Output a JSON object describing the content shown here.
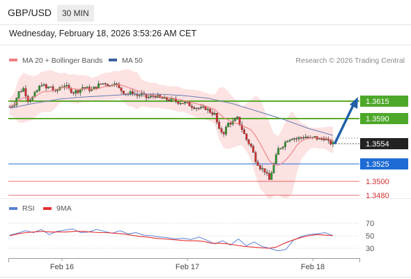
{
  "header": {
    "pair": "GBP/USD",
    "timeframe": "30 MIN",
    "datetime": "Wednesday, February 18, 2026 3:53:26 AM CET"
  },
  "legend": {
    "ma20_label": "MA 20 + Bollinger Bands",
    "ma50_label": "MA 50",
    "ma20_color": "#f08080",
    "ma50_color": "#3a5fa0",
    "copyright": "Research © 2026 Trading Central"
  },
  "rsi_legend": {
    "rsi_label": "RSI",
    "ma_label": "9MA",
    "rsi_color": "#5b7fd6",
    "ma_color": "#e53030"
  },
  "chart_data": {
    "type": "candlestick",
    "x_ticks": [
      "Feb 16",
      "Feb 17",
      "Feb 18"
    ],
    "price_range": [
      1.3466,
      1.3659
    ],
    "current_price": 1.3554,
    "levels": [
      {
        "value": 1.3615,
        "label": "1.3615",
        "kind": "resistance",
        "color": "#5aaa2a"
      },
      {
        "value": 1.359,
        "label": "1.3590",
        "kind": "resistance",
        "color": "#5aaa2a"
      },
      {
        "value": 1.3554,
        "label": "1.3554",
        "kind": "current",
        "color": "#333333"
      },
      {
        "value": 1.3525,
        "label": "1.3525",
        "kind": "pivot",
        "color": "#1e6bd6"
      },
      {
        "value": 1.35,
        "label": "1.3500",
        "kind": "support",
        "color": "#e53030"
      },
      {
        "value": 1.348,
        "label": "1.3480",
        "kind": "support",
        "color": "#e53030"
      }
    ],
    "close_path": [
      1.3607,
      1.3612,
      1.3628,
      1.3633,
      1.3617,
      1.362,
      1.363,
      1.364,
      1.3633,
      1.3636,
      1.3627,
      1.3635,
      1.3638,
      1.3632,
      1.3628,
      1.363,
      1.3635,
      1.3633,
      1.3631,
      1.3636,
      1.364,
      1.3641,
      1.3637,
      1.3643,
      1.3633,
      1.3628,
      1.3625,
      1.3628,
      1.3623,
      1.3625,
      1.362,
      1.3621,
      1.3623,
      1.3619,
      1.3618,
      1.3617,
      1.3616,
      1.3614,
      1.3613,
      1.3611,
      1.3608,
      1.3606,
      1.3604,
      1.3605,
      1.36,
      1.3596,
      1.3573,
      1.357,
      1.3583,
      1.3585,
      1.359,
      1.3575,
      1.356,
      1.355,
      1.3531,
      1.352,
      1.3515,
      1.3502,
      1.3525,
      1.3546,
      1.3552,
      1.356,
      1.3563,
      1.3561,
      1.3563,
      1.3564,
      1.3561,
      1.3563,
      1.356,
      1.3562,
      1.3556,
      1.3554
    ],
    "ma50_path": [
      1.3605,
      1.3612,
      1.3618,
      1.3621,
      1.3623,
      1.3625,
      1.3625,
      1.3623,
      1.3619,
      1.3611,
      1.36,
      1.3589,
      1.3576,
      1.3566
    ],
    "projection": [
      1.3554,
      1.3615
    ],
    "rsi": {
      "range": [
        20,
        80
      ],
      "ticks": [
        70,
        50,
        30
      ],
      "rsi_path": [
        51,
        54,
        58,
        55,
        60,
        52,
        57,
        59,
        61,
        55,
        56,
        60,
        57,
        54,
        58,
        53,
        55,
        51,
        50,
        48,
        47,
        45,
        46,
        44,
        48,
        43,
        37,
        42,
        35,
        45,
        34,
        40,
        33,
        30,
        26,
        28,
        43,
        49,
        52,
        53,
        55,
        50
      ],
      "ma_path": [
        50,
        53,
        55,
        56,
        57,
        56,
        56,
        56,
        57,
        57,
        56,
        55,
        55,
        54,
        53,
        51,
        49,
        48,
        46,
        45,
        44,
        43,
        42,
        42,
        41,
        38,
        38,
        37,
        35,
        33,
        32,
        31,
        30,
        32,
        38,
        43,
        47,
        50,
        52,
        51,
        50
      ]
    }
  }
}
